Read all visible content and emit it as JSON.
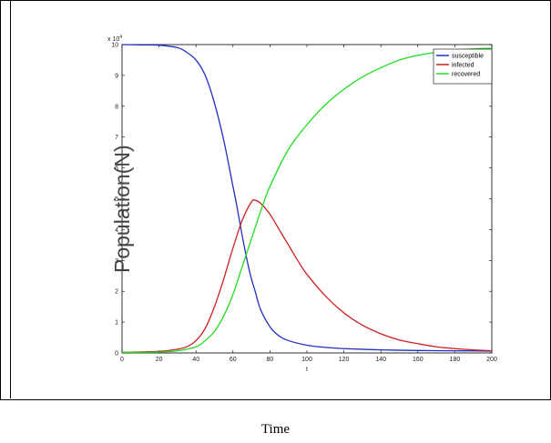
{
  "caption": "Time",
  "chart_data": {
    "type": "line",
    "xlabel": "t",
    "ylabel": "Population(N)",
    "xlim": [
      0,
      200
    ],
    "ylim": [
      0,
      10
    ],
    "y_exponent": "x 10",
    "y_exponent_power": "4",
    "xticks": [
      0,
      20,
      40,
      60,
      80,
      100,
      120,
      140,
      160,
      180,
      200
    ],
    "yticks": [
      0,
      1,
      2,
      3,
      4,
      5,
      6,
      7,
      8,
      9,
      10
    ],
    "legend_placement": "top-right",
    "grid": false,
    "series": [
      {
        "name": "susceptible",
        "color": "#1f2fbf",
        "x": [
          0,
          10,
          20,
          30,
          35,
          40,
          45,
          50,
          55,
          60,
          62,
          65,
          68,
          70,
          72,
          75,
          80,
          85,
          90,
          100,
          110,
          120,
          140,
          160,
          180,
          200
        ],
        "values": [
          10,
          9.99,
          9.98,
          9.9,
          9.75,
          9.5,
          9.0,
          8.1,
          6.9,
          5.4,
          4.8,
          3.8,
          2.9,
          2.4,
          2.0,
          1.4,
          0.85,
          0.55,
          0.4,
          0.25,
          0.18,
          0.14,
          0.1,
          0.08,
          0.07,
          0.06
        ]
      },
      {
        "name": "infected",
        "color": "#cc2020",
        "x": [
          0,
          20,
          30,
          35,
          40,
          45,
          50,
          55,
          60,
          65,
          70,
          72,
          75,
          80,
          85,
          90,
          95,
          100,
          110,
          120,
          130,
          140,
          150,
          160,
          170,
          180,
          190,
          200
        ],
        "values": [
          0.02,
          0.05,
          0.12,
          0.2,
          0.4,
          0.8,
          1.5,
          2.4,
          3.4,
          4.3,
          4.9,
          4.95,
          4.85,
          4.5,
          4.0,
          3.5,
          3.0,
          2.55,
          1.85,
          1.3,
          0.9,
          0.62,
          0.42,
          0.3,
          0.2,
          0.14,
          0.1,
          0.07
        ]
      },
      {
        "name": "recovered",
        "color": "#22dd22",
        "x": [
          0,
          20,
          30,
          40,
          45,
          50,
          55,
          60,
          65,
          70,
          75,
          80,
          90,
          100,
          110,
          120,
          130,
          140,
          150,
          160,
          170,
          180,
          190,
          200
        ],
        "values": [
          0.02,
          0.03,
          0.07,
          0.2,
          0.4,
          0.7,
          1.2,
          1.9,
          2.8,
          3.7,
          4.6,
          5.4,
          6.6,
          7.4,
          8.05,
          8.55,
          8.95,
          9.25,
          9.5,
          9.65,
          9.75,
          9.82,
          9.86,
          9.88
        ]
      }
    ]
  }
}
